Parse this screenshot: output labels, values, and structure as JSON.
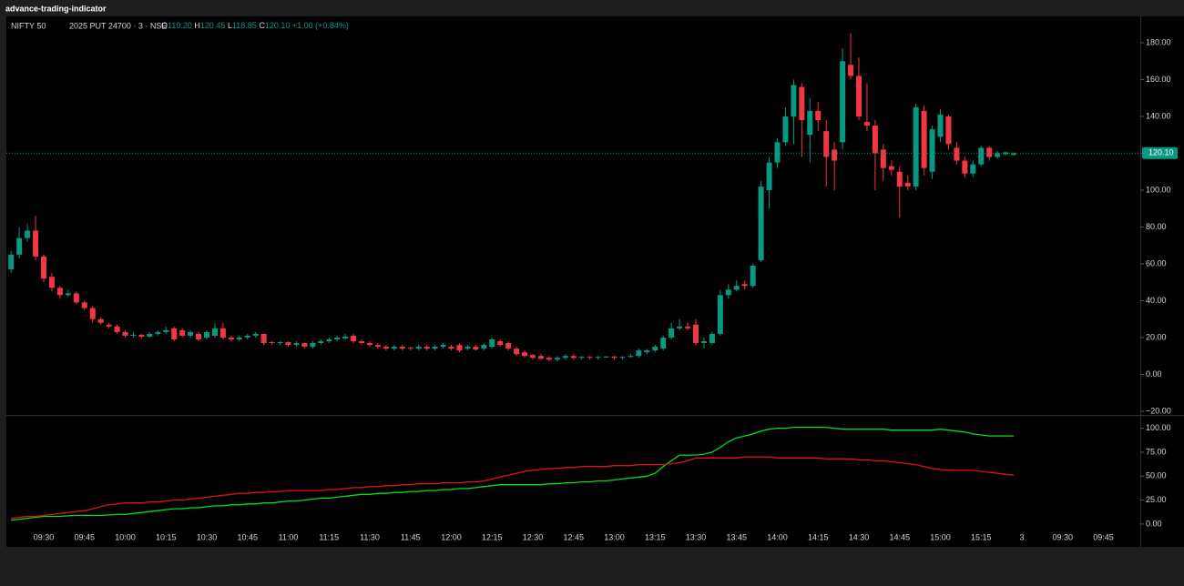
{
  "app_title": "advance-trading-indicator",
  "header": {
    "symbol": "NIFTY 50",
    "instrument": "2025 PUT 24700 · 3 · NSE",
    "ohlc": [
      {
        "label": "O",
        "value": "119.20"
      },
      {
        "label": "H",
        "value": "120.45"
      },
      {
        "label": "L",
        "value": "118.85"
      },
      {
        "label": "C",
        "value": "120.10"
      }
    ],
    "change": "+1.00 (+0.84%)"
  },
  "chart_data": [
    {
      "type": "candlestick",
      "x": [
        "09:18",
        "09:21",
        "09:24",
        "09:27",
        "09:30",
        "09:33",
        "09:36",
        "09:39",
        "09:42",
        "09:45",
        "09:48",
        "09:51",
        "09:54",
        "09:57",
        "10:00",
        "10:03",
        "10:06",
        "10:09",
        "10:12",
        "10:15",
        "10:18",
        "10:21",
        "10:24",
        "10:27",
        "10:30",
        "10:33",
        "10:36",
        "10:39",
        "10:42",
        "10:45",
        "10:48",
        "10:51",
        "10:54",
        "10:57",
        "11:00",
        "11:03",
        "11:06",
        "11:09",
        "11:12",
        "11:15",
        "11:18",
        "11:21",
        "11:24",
        "11:27",
        "11:30",
        "11:33",
        "11:36",
        "11:39",
        "11:42",
        "11:45",
        "11:48",
        "11:51",
        "11:54",
        "11:57",
        "12:00",
        "12:03",
        "12:06",
        "12:09",
        "12:12",
        "12:15",
        "12:18",
        "12:21",
        "12:24",
        "12:27",
        "12:30",
        "12:33",
        "12:36",
        "12:39",
        "12:42",
        "12:45",
        "12:48",
        "12:51",
        "12:54",
        "12:57",
        "13:00",
        "13:03",
        "13:06",
        "13:09",
        "13:12",
        "13:15",
        "13:18",
        "13:21",
        "13:24",
        "13:27",
        "13:30",
        "13:33",
        "13:36",
        "13:39",
        "13:42",
        "13:45",
        "13:48",
        "13:51",
        "13:54",
        "13:57",
        "14:00",
        "14:03",
        "14:06",
        "14:09",
        "14:12",
        "14:15",
        "14:18",
        "14:21",
        "14:24",
        "14:27",
        "14:30",
        "14:33",
        "14:36",
        "14:39",
        "14:42",
        "14:45",
        "14:48",
        "14:51",
        "14:54",
        "14:57",
        "15:00",
        "15:03",
        "15:06",
        "15:09",
        "15:12",
        "15:15",
        "15:18",
        "15:21",
        "15:24",
        "15:27"
      ],
      "open": [
        57,
        65,
        74,
        78,
        64,
        53,
        47,
        43,
        44,
        39,
        36,
        30,
        27,
        26,
        23,
        21,
        21.5,
        20.5,
        22,
        23,
        25,
        24,
        21,
        22,
        20,
        21,
        25,
        20,
        19,
        20,
        21,
        22,
        17.5,
        17,
        17.5,
        16,
        17,
        15,
        17,
        18,
        19,
        19.5,
        21,
        18,
        17,
        16,
        15,
        14,
        15,
        14.5,
        14,
        15,
        14,
        15,
        15,
        16,
        14,
        15,
        14,
        15,
        18,
        17,
        14,
        12,
        10.5,
        10,
        9,
        8,
        9,
        10,
        9,
        9.5,
        9,
        9.3,
        9.7,
        9,
        9.5,
        10,
        12,
        13,
        14,
        20,
        25,
        26,
        27,
        17,
        17,
        22,
        43,
        46,
        49,
        48,
        62,
        100,
        115,
        126,
        140,
        156,
        130,
        143,
        132,
        122,
        126,
        168,
        162,
        137,
        135,
        122,
        113,
        110,
        104,
        102,
        143,
        110,
        129,
        140,
        123,
        116,
        109,
        114,
        123,
        118,
        119.5,
        119.2
      ],
      "high": [
        67,
        80,
        82,
        86,
        65,
        55,
        48,
        46,
        45,
        40,
        37,
        31,
        28,
        27,
        24,
        23,
        22,
        23,
        24,
        26,
        26,
        25,
        24,
        23,
        24,
        28,
        28,
        21,
        21,
        22,
        23,
        22,
        18,
        18,
        18,
        18,
        17,
        18,
        19,
        20,
        21,
        22,
        22,
        19,
        18,
        17,
        16,
        16,
        16,
        15,
        16,
        16,
        16,
        17,
        16,
        17,
        16,
        16,
        17,
        20,
        19,
        18,
        15,
        13,
        11,
        11,
        10,
        10,
        11,
        11,
        10,
        10,
        10,
        10,
        10,
        10,
        11,
        14,
        14,
        16,
        21,
        28,
        30,
        28,
        30,
        20,
        23,
        46,
        49,
        51,
        51,
        60,
        105,
        118,
        128,
        145,
        160,
        158,
        150,
        148,
        138,
        126,
        177,
        185,
        172,
        158,
        138,
        125,
        116,
        113,
        108,
        147,
        146,
        135,
        144,
        141,
        126,
        118,
        116,
        124,
        124,
        121,
        121,
        120.45
      ],
      "low": [
        55,
        63,
        72,
        62,
        50,
        45,
        41,
        42,
        38,
        35,
        28,
        27,
        25,
        22,
        20,
        20,
        19.5,
        20,
        21,
        22,
        18,
        20,
        20,
        18,
        19,
        20,
        19,
        18,
        18,
        19,
        20,
        16,
        16,
        16,
        15,
        15,
        14,
        14,
        16,
        17,
        18,
        19,
        17,
        16,
        15,
        14,
        13,
        13,
        13,
        13,
        13,
        13,
        13,
        14,
        13,
        12,
        13,
        13,
        13,
        14,
        15,
        13,
        10,
        9,
        8,
        8,
        7,
        7,
        8,
        8,
        8,
        8,
        8,
        9,
        8,
        8,
        9,
        9,
        11,
        12,
        13,
        19,
        24,
        24,
        16,
        14,
        16,
        21,
        41,
        45,
        46,
        47,
        61,
        90,
        112,
        124,
        125,
        118,
        115,
        132,
        102,
        100,
        122,
        160,
        138,
        132,
        100,
        105,
        108,
        85,
        100,
        100,
        108,
        106,
        126,
        122,
        114,
        107,
        107,
        113,
        116,
        117,
        119,
        118.85
      ],
      "close": [
        65,
        74,
        78,
        64,
        52,
        47,
        43,
        44,
        39,
        36,
        30,
        28,
        26,
        23,
        21,
        21.5,
        20.5,
        22,
        23,
        24,
        19,
        21,
        23,
        19,
        23,
        25,
        20,
        19,
        20,
        21,
        22,
        17,
        17,
        17.5,
        16,
        17,
        15,
        17,
        18,
        19,
        20,
        20.5,
        18,
        17,
        16,
        15,
        14,
        15,
        14,
        14,
        15,
        14,
        15,
        16,
        14,
        13,
        15,
        13.5,
        16,
        19,
        16,
        14,
        11,
        10,
        9,
        8.5,
        8,
        9,
        10,
        9,
        9.5,
        9,
        9.5,
        9.7,
        9,
        9.5,
        10,
        13,
        13,
        15,
        20,
        25,
        26,
        25,
        17,
        18,
        22,
        43,
        46,
        48,
        48,
        59,
        102,
        115,
        126,
        140,
        157,
        138,
        143,
        138,
        118,
        116,
        170,
        162,
        140,
        135,
        120,
        112,
        111,
        102,
        102,
        145,
        112,
        133,
        141,
        125,
        116,
        109,
        114,
        123,
        118,
        120,
        120.5,
        120.1
      ],
      "up_color": "#089981",
      "down_color": "#f23645",
      "ylim": [
        -21.5,
        194.3
      ],
      "yticks": [
        {
          "value": 180,
          "label": "180.00"
        },
        {
          "value": 160,
          "label": "160.00"
        },
        {
          "value": 140,
          "label": "140.00"
        },
        {
          "value": 120,
          "label": "120.00"
        },
        {
          "value": 100,
          "label": "100.00"
        },
        {
          "value": 80,
          "label": "80.00"
        },
        {
          "value": 60,
          "label": "60.00"
        },
        {
          "value": 40,
          "label": "40.00"
        },
        {
          "value": 20,
          "label": "20.00"
        },
        {
          "value": 0,
          "label": "0.00"
        },
        {
          "value": -20,
          "label": "−20.00"
        }
      ],
      "last_price": {
        "value": 120.1,
        "label": "120.10"
      },
      "xticks": [
        "09:30",
        "09:45",
        "10:00",
        "10:15",
        "10:30",
        "10:45",
        "11:00",
        "11:15",
        "11:30",
        "11:45",
        "12:00",
        "12:15",
        "12:30",
        "12:45",
        "13:00",
        "13:15",
        "13:30",
        "13:45",
        "14:00",
        "14:15",
        "14:30",
        "14:45",
        "15:00",
        "15:15",
        "3",
        "09:30",
        "09:45"
      ]
    },
    {
      "type": "line",
      "series": [
        {
          "color": "#00e011",
          "values": [
            4,
            5,
            6,
            7,
            8,
            8,
            8,
            8.5,
            9,
            9,
            9,
            9,
            9.5,
            10,
            10,
            11,
            12,
            13,
            14,
            15,
            16,
            16,
            17,
            17,
            18,
            19,
            19,
            20,
            20,
            21,
            21,
            22,
            22,
            23,
            24,
            24,
            25,
            26,
            27,
            27,
            28,
            29,
            30,
            31,
            31,
            32,
            32,
            33,
            33,
            34,
            34,
            35,
            35,
            36,
            36,
            37,
            37,
            38,
            39,
            40,
            41,
            41,
            41,
            41,
            41,
            41,
            42,
            42,
            43,
            43,
            44,
            44,
            45,
            45,
            46,
            47,
            48,
            49,
            50,
            53,
            60,
            66,
            72,
            72,
            72,
            73,
            75,
            80,
            86,
            90,
            92,
            94,
            97,
            99,
            100,
            100,
            101,
            101,
            101,
            101,
            101,
            100,
            99,
            99,
            99,
            99,
            99,
            99,
            98,
            98,
            98,
            98,
            98,
            98,
            99,
            98,
            97,
            96,
            94,
            93,
            92,
            92,
            92,
            92
          ]
        },
        {
          "color": "#e0101a",
          "values": [
            6,
            7,
            8,
            8,
            9,
            10,
            11,
            12,
            13,
            14,
            16,
            18,
            20,
            21,
            22,
            22,
            22,
            23,
            23,
            24,
            25,
            25,
            26,
            27,
            28,
            29,
            30,
            31,
            32,
            32,
            33,
            33,
            34,
            34,
            35,
            35,
            35,
            35,
            35,
            36,
            36,
            37,
            38,
            38,
            39,
            39,
            40,
            40,
            41,
            41,
            42,
            42,
            42,
            43,
            43,
            43,
            44,
            44,
            45,
            47,
            49,
            51,
            53,
            55,
            56,
            57,
            58,
            58,
            59,
            59,
            60,
            60,
            60,
            60,
            61,
            61,
            61,
            62,
            62,
            62,
            62,
            63,
            64,
            66,
            69,
            69,
            69,
            69,
            69,
            69,
            70,
            70,
            70,
            70,
            69,
            69,
            69,
            69,
            69,
            69,
            68,
            68,
            68,
            68,
            67,
            67,
            66,
            66,
            65,
            64,
            63,
            62,
            60,
            58,
            57,
            56,
            56,
            56,
            56,
            55,
            54,
            53,
            52,
            51
          ]
        }
      ],
      "ylim": [
        -21,
        112
      ],
      "yticks": [
        {
          "value": 100,
          "label": "100.00"
        },
        {
          "value": 75,
          "label": "75.00"
        },
        {
          "value": 50,
          "label": "50.00"
        },
        {
          "value": 25,
          "label": "25.00"
        },
        {
          "value": 0,
          "label": "0.00"
        }
      ]
    }
  ]
}
